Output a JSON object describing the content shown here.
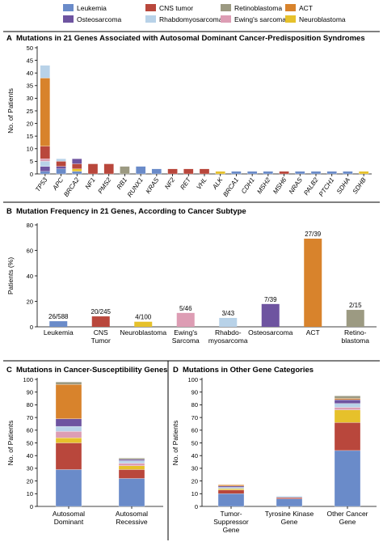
{
  "legend": [
    {
      "name": "Leukemia",
      "color": "#6a8bc9"
    },
    {
      "name": "CNS tumor",
      "color": "#b9473c"
    },
    {
      "name": "Retinoblastoma",
      "color": "#9c9a82"
    },
    {
      "name": "ACT",
      "color": "#d8832c"
    },
    {
      "name": "Osteosarcoma",
      "color": "#6e54a0"
    },
    {
      "name": "Rhabdomyosarcoma",
      "color": "#b8d2e8"
    },
    {
      "name": "Ewing's sarcoma",
      "color": "#dd9db4"
    },
    {
      "name": "Neuroblastoma",
      "color": "#e6c12b"
    }
  ],
  "panels": {
    "A": {
      "letter": "A",
      "title": "Mutations in 21 Genes Associated with Autosomal Dominant Cancer-Predisposition Syndromes"
    },
    "B": {
      "letter": "B",
      "title": "Mutation Frequency in 21 Genes, According to Cancer Subtype"
    },
    "C": {
      "letter": "C",
      "title": "Mutations in Cancer-Susceptibility Genes"
    },
    "D": {
      "letter": "D",
      "title": "Mutations in Other Gene Categories"
    }
  },
  "chart_data": [
    {
      "panel": "A",
      "type": "bar",
      "stacked": true,
      "ylabel": "No. of Patients",
      "xlabel": "",
      "ylim": [
        0,
        50
      ],
      "yticks": [
        0,
        5,
        10,
        15,
        20,
        25,
        30,
        35,
        40,
        45,
        50
      ],
      "categories": [
        "TP53",
        "APC",
        "BRCA2",
        "NF1",
        "PMS2",
        "RB1",
        "RUNX1",
        "KRAS",
        "NF2",
        "RET",
        "VHL",
        "ALK",
        "BRCA1",
        "CDH1",
        "MSH2",
        "MSH6",
        "NRAS",
        "PALB2",
        "PTCH1",
        "SDHA",
        "SDHB"
      ],
      "series": [
        {
          "name": "Leukemia",
          "values": [
            1,
            2,
            1,
            0,
            0,
            0,
            3,
            2,
            0,
            0,
            0,
            0,
            1,
            1,
            1,
            0,
            1,
            1,
            1,
            1,
            0
          ]
        },
        {
          "name": "Osteosarcoma",
          "values": [
            2,
            1,
            0,
            0,
            0,
            0,
            0,
            0,
            0,
            0,
            0,
            0,
            0,
            0,
            0,
            0,
            0,
            0,
            0,
            0,
            0
          ]
        },
        {
          "name": "Rhabdomyosarcoma",
          "values": [
            2,
            0,
            0,
            0,
            0,
            0,
            0,
            0,
            0,
            0,
            0,
            0,
            0,
            0,
            0,
            0,
            0,
            0,
            0,
            0,
            0
          ]
        },
        {
          "name": "Ewing's sarcoma",
          "values": [
            1,
            0,
            0,
            0,
            0,
            0,
            0,
            0,
            0,
            0,
            0,
            0,
            0,
            0,
            0,
            0,
            0,
            0,
            0,
            0,
            0
          ]
        },
        {
          "name": "Neuroblastoma",
          "values": [
            0,
            0,
            1,
            0,
            0,
            0,
            0,
            0,
            0,
            0,
            0,
            1,
            0,
            0,
            0,
            0,
            0,
            0,
            0,
            0,
            1
          ]
        },
        {
          "name": "Retinoblastoma",
          "values": [
            0,
            0,
            0,
            0,
            0,
            3,
            0,
            0,
            0,
            0,
            0,
            0,
            0,
            0,
            0,
            0,
            0,
            0,
            0,
            0,
            0
          ]
        },
        {
          "name": "CNS tumor",
          "values": [
            5,
            2,
            2,
            4,
            4,
            0,
            0,
            0,
            2,
            2,
            2,
            0,
            0,
            0,
            0,
            1,
            0,
            0,
            0,
            0,
            0
          ]
        },
        {
          "name": "ACT",
          "values": [
            27,
            0,
            0,
            0,
            0,
            0,
            0,
            0,
            0,
            0,
            0,
            0,
            0,
            0,
            0,
            0,
            0,
            0,
            0,
            0,
            0
          ]
        },
        {
          "name": "Rhabdomyosarcoma",
          "values": [
            5,
            1,
            0,
            0,
            0,
            0,
            0,
            0,
            0,
            0,
            0,
            0,
            0,
            0,
            0,
            0,
            0,
            0,
            0,
            0,
            0
          ]
        },
        {
          "name": "Osteosarcoma",
          "values": [
            0,
            0,
            2,
            0,
            0,
            0,
            0,
            0,
            0,
            0,
            0,
            0,
            0,
            0,
            0,
            0,
            0,
            0,
            0,
            0,
            0
          ]
        }
      ]
    },
    {
      "panel": "B",
      "type": "bar",
      "ylabel": "Patients (%)",
      "xlabel": "",
      "ylim": [
        0,
        80
      ],
      "yticks": [
        0,
        20,
        40,
        60,
        80
      ],
      "categories": [
        "Leukemia",
        "CNS Tumor",
        "Neuroblastoma",
        "Ewing's Sarcoma",
        "Rhabdo-myosarcoma",
        "Osteosarcoma",
        "ACT",
        "Retino-blastoma"
      ],
      "category_lines": [
        [
          "Leukemia"
        ],
        [
          "CNS",
          "Tumor"
        ],
        [
          "Neuroblastoma"
        ],
        [
          "Ewing's",
          "Sarcoma"
        ],
        [
          "Rhabdo-",
          "myosarcoma"
        ],
        [
          "Osteosarcoma"
        ],
        [
          "ACT"
        ],
        [
          "Retino-",
          "blastoma"
        ]
      ],
      "values": [
        4.4,
        8.2,
        4.0,
        10.9,
        7.0,
        17.9,
        69.2,
        13.3
      ],
      "data_labels": [
        "26/588",
        "20/245",
        "4/100",
        "5/46",
        "3/43",
        "7/39",
        "27/39",
        "2/15"
      ],
      "colors": [
        "#6a8bc9",
        "#b9473c",
        "#e6c12b",
        "#dd9db4",
        "#b8d2e8",
        "#6e54a0",
        "#d8832c",
        "#9c9a82"
      ]
    },
    {
      "panel": "C",
      "type": "bar",
      "stacked": true,
      "ylabel": "No. of Patients",
      "xlabel": "",
      "ylim": [
        0,
        100
      ],
      "yticks": [
        0,
        10,
        20,
        30,
        40,
        50,
        60,
        70,
        80,
        90,
        100
      ],
      "categories": [
        "Autosomal Dominant",
        "Autosomal Recessive"
      ],
      "category_lines": [
        [
          "Autosomal",
          "Dominant"
        ],
        [
          "Autosomal",
          "Recessive"
        ]
      ],
      "series": [
        {
          "name": "Leukemia",
          "values": [
            29,
            22
          ]
        },
        {
          "name": "CNS tumor",
          "values": [
            21,
            7
          ]
        },
        {
          "name": "Neuroblastoma",
          "values": [
            4,
            3
          ]
        },
        {
          "name": "Ewing's sarcoma",
          "values": [
            5,
            2
          ]
        },
        {
          "name": "Rhabdomyosarcoma",
          "values": [
            4,
            2
          ]
        },
        {
          "name": "Osteosarcoma",
          "values": [
            6,
            1
          ]
        },
        {
          "name": "ACT",
          "values": [
            27,
            0
          ]
        },
        {
          "name": "Retinoblastoma",
          "values": [
            2,
            1
          ]
        }
      ]
    },
    {
      "panel": "D",
      "type": "bar",
      "stacked": true,
      "ylabel": "No. of Patients",
      "xlabel": "",
      "ylim": [
        0,
        100
      ],
      "yticks": [
        0,
        10,
        20,
        30,
        40,
        50,
        60,
        70,
        80,
        90,
        100
      ],
      "categories": [
        "Tumor-Suppressor Gene",
        "Tyrosine Kinase Gene",
        "Other Cancer Gene"
      ],
      "category_lines": [
        [
          "Tumor-",
          "Suppressor",
          "Gene"
        ],
        [
          "Tyrosine Kinase",
          "Gene"
        ],
        [
          "Other Cancer",
          "Gene"
        ]
      ],
      "series": [
        {
          "name": "Leukemia",
          "values": [
            10,
            6,
            44
          ]
        },
        {
          "name": "CNS tumor",
          "values": [
            3,
            1,
            22
          ]
        },
        {
          "name": "Neuroblastoma",
          "values": [
            1,
            0,
            10
          ]
        },
        {
          "name": "Ewing's sarcoma",
          "values": [
            0,
            0,
            2
          ]
        },
        {
          "name": "Rhabdomyosarcoma",
          "values": [
            1,
            1,
            3
          ]
        },
        {
          "name": "Osteosarcoma",
          "values": [
            1,
            0,
            3
          ]
        },
        {
          "name": "ACT",
          "values": [
            1,
            0,
            1
          ]
        },
        {
          "name": "Retinoblastoma",
          "values": [
            0,
            0,
            2
          ]
        }
      ]
    }
  ]
}
